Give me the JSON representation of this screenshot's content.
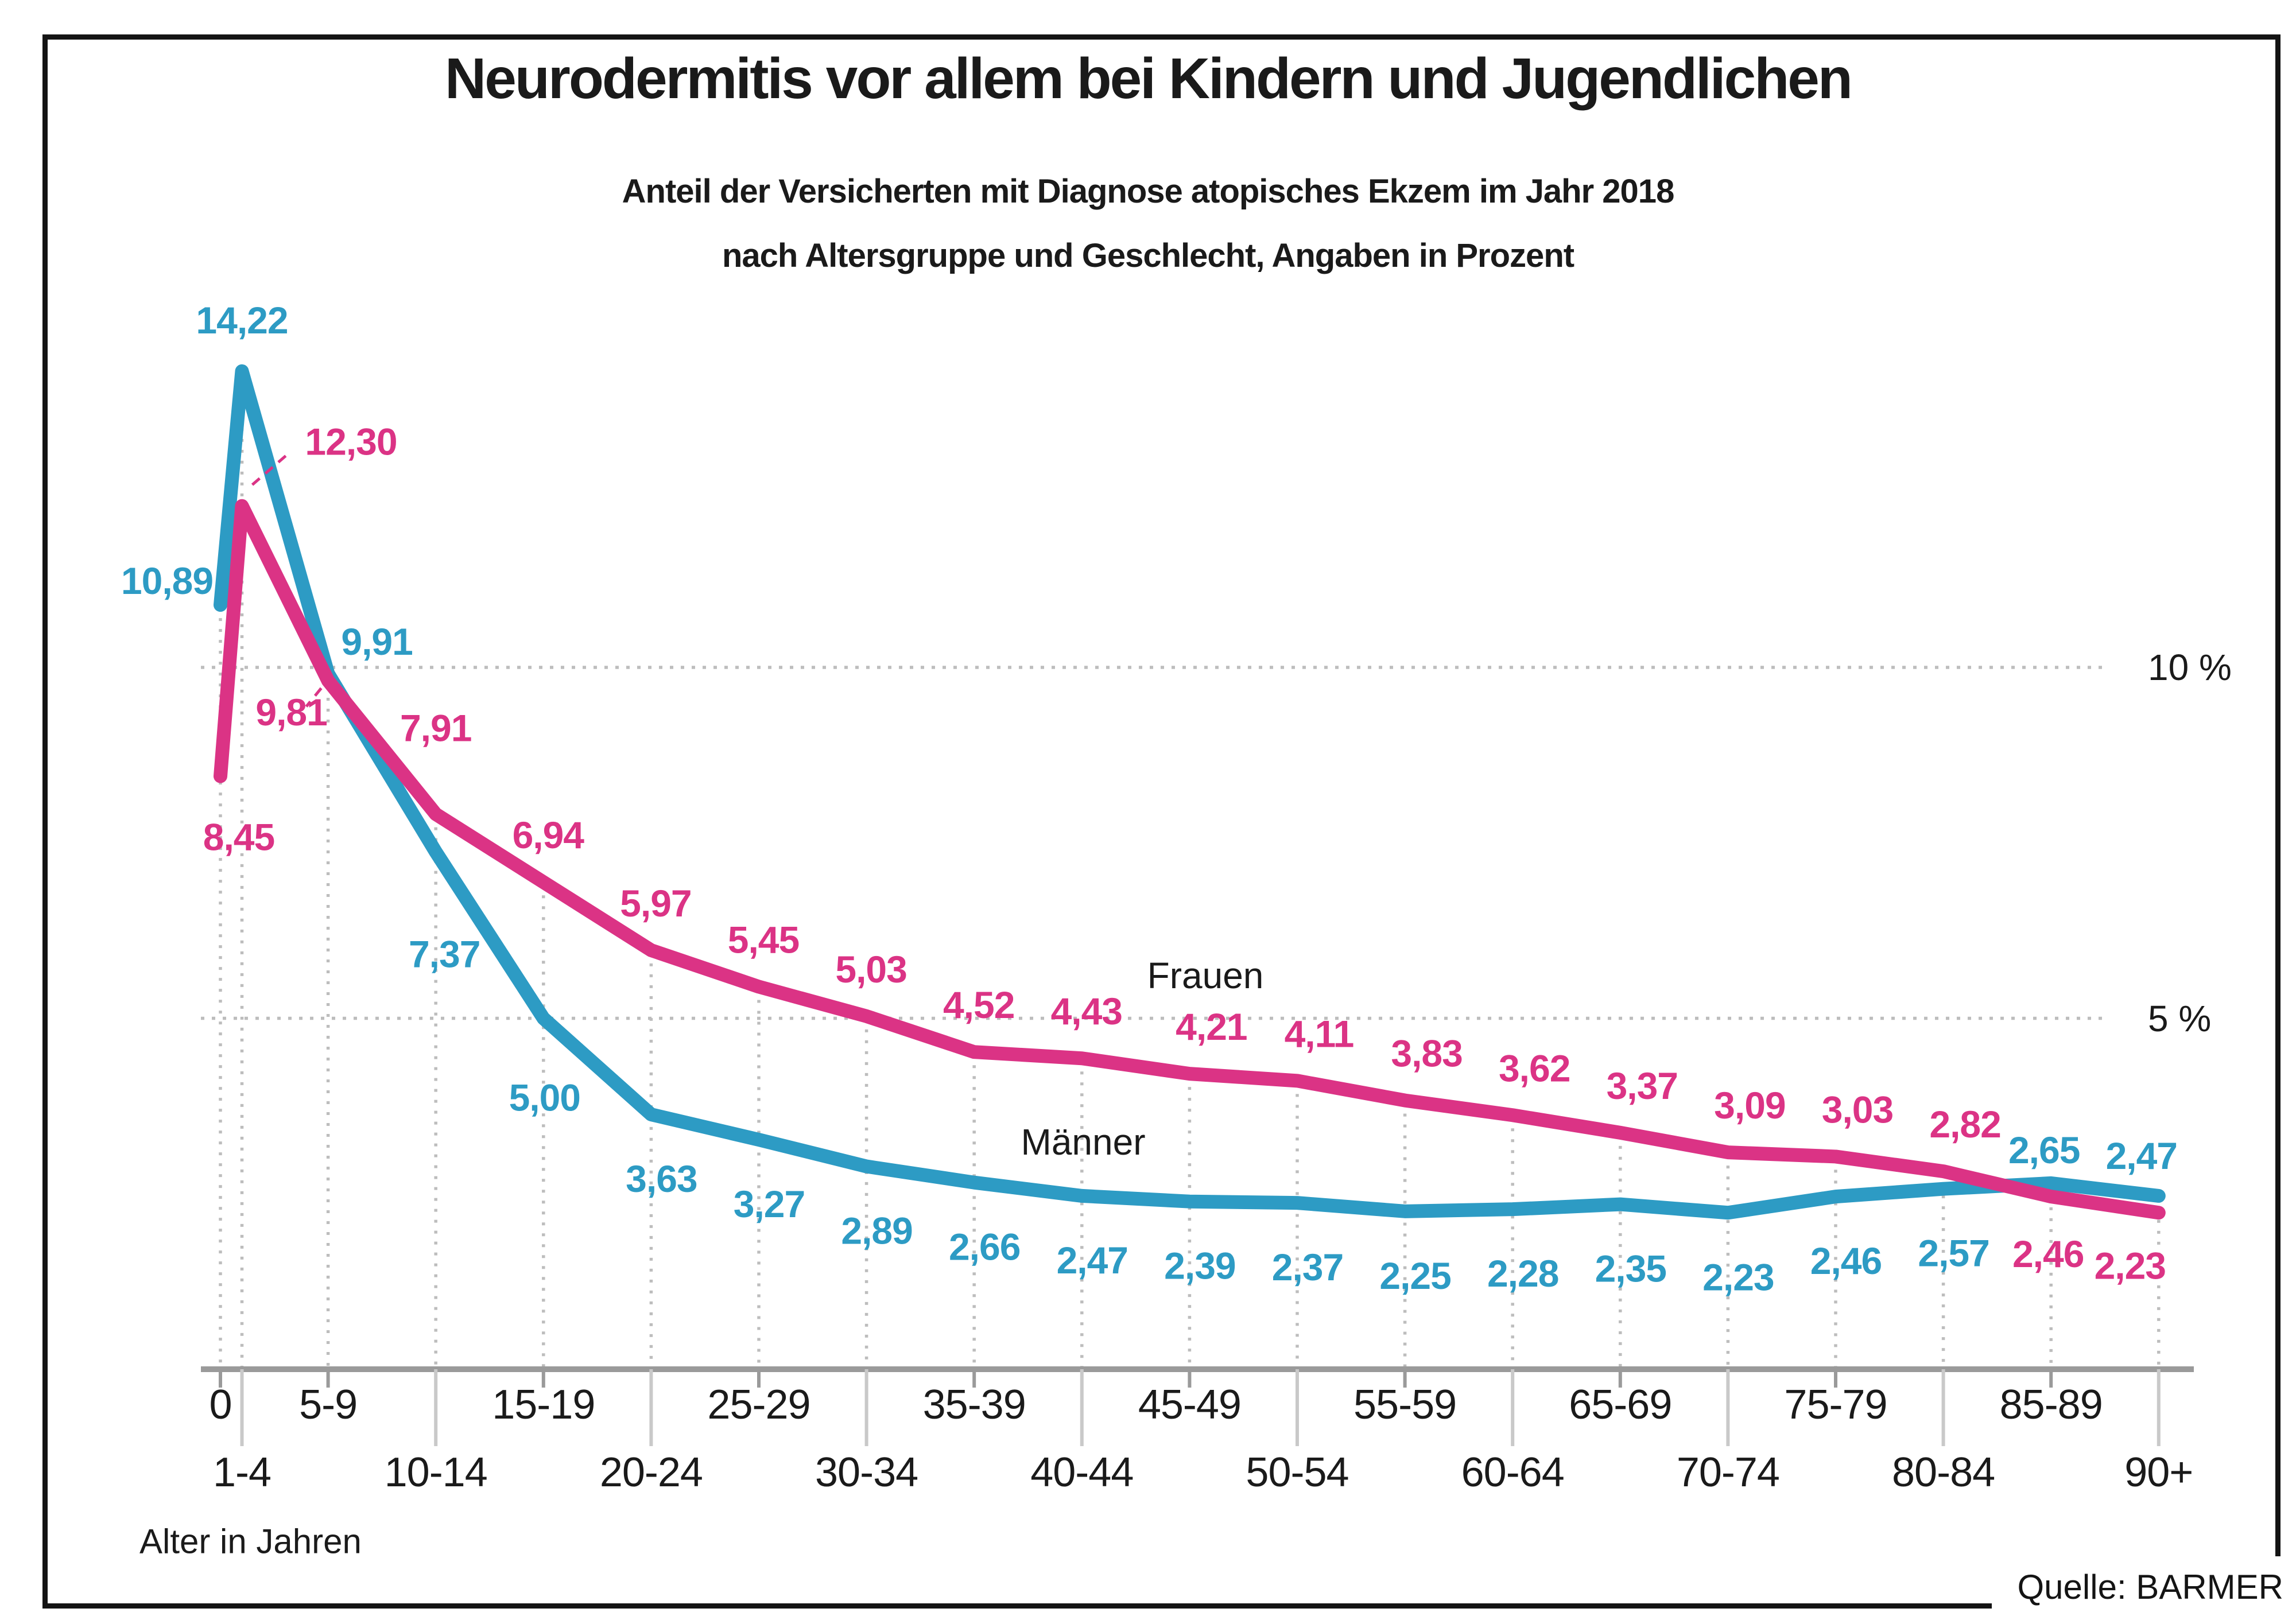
{
  "header": {
    "title": "Neurodermitis vor allem bei Kindern und Jugendlichen",
    "subtitle_line1": "Anteil der Versicherten mit Diagnose atopisches Ekzem im Jahr 2018",
    "subtitle_line2": "nach Altersgruppe und Geschlecht, Angaben in Prozent"
  },
  "source_label": "Quelle: BARMER",
  "x_axis_title": "Alter in Jahren",
  "gridline_labels": {
    "ten": "10 %",
    "five": "5 %"
  },
  "legend": {
    "frauen": "Frauen",
    "maenner": "Männer"
  },
  "colors": {
    "maenner_blue": "#2D9BC4",
    "frauen_pink": "#DB3385",
    "axis_gray": "#9A9A9A",
    "tick_short_gray": "#9A9A9A",
    "tick_long_gray": "#C9C9C9",
    "grid_dot_gray": "#BDBDBD",
    "text_dark": "#1A1A1A",
    "frame_black": "#141414"
  },
  "chart_data": {
    "type": "line",
    "title": "Neurodermitis vor allem bei Kindern und Jugendlichen",
    "categories": [
      "0",
      "1-4",
      "5-9",
      "10-14",
      "15-19",
      "20-24",
      "25-29",
      "30-34",
      "35-39",
      "40-44",
      "45-49",
      "50-54",
      "55-59",
      "60-64",
      "65-69",
      "70-74",
      "75-79",
      "80-84",
      "85-89",
      "90+"
    ],
    "age_positions": [
      0,
      1,
      5,
      10,
      15,
      20,
      25,
      30,
      35,
      40,
      45,
      50,
      55,
      60,
      65,
      70,
      75,
      80,
      85,
      90
    ],
    "series": [
      {
        "name": "Männer",
        "color_key": "maenner_blue",
        "values": [
          10.89,
          14.22,
          9.91,
          7.37,
          5.0,
          3.63,
          3.27,
          2.89,
          2.66,
          2.47,
          2.39,
          2.37,
          2.25,
          2.28,
          2.35,
          2.23,
          2.46,
          2.57,
          2.65,
          2.47
        ]
      },
      {
        "name": "Frauen",
        "color_key": "frauen_pink",
        "values": [
          8.45,
          12.3,
          9.81,
          7.91,
          6.94,
          5.97,
          5.45,
          5.03,
          4.52,
          4.43,
          4.21,
          4.11,
          3.83,
          3.62,
          3.37,
          3.09,
          3.03,
          2.82,
          2.46,
          2.23
        ]
      }
    ],
    "ylabel": "Prozent",
    "xlabel": "Alter in Jahren",
    "ylim": [
      0,
      15
    ],
    "gridlines_y": [
      5,
      10
    ],
    "grid": "dotted",
    "decimal_separator": ",",
    "legend_position": "inline",
    "annotation_leaders": [
      "12,30",
      "9,81"
    ]
  }
}
